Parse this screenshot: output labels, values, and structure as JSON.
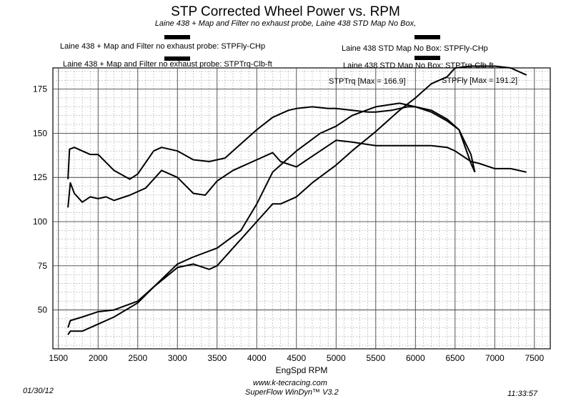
{
  "title": "STP Corrected Wheel Power vs. RPM",
  "subtitle": "Laine 438 + Map and Filter no exhaust probe, Laine 438 STD Map No Box,",
  "legend": [
    {
      "label": "Laine 438 + Map and Filter no exhaust probe: STPFly-CHp",
      "color": "#000000"
    },
    {
      "label": "Laine 438 + Map and Filter no exhaust probe: STPTrq-Clb-ft",
      "color": "#000000"
    },
    {
      "label": "Laine 438 STD Map No Box: STPFly-CHp",
      "color": "#000000"
    },
    {
      "label": "Laine 438 STD Map No Box: STPTrq-Clb-ft",
      "color": "#000000"
    }
  ],
  "annotations": {
    "power_max": "STPFly [Max = 191.2]",
    "torque_max": "STPTrq [Max = 166.9]"
  },
  "footer": {
    "date": "01/30/12",
    "website": "www.k-tecracing.com",
    "software": "SuperFlow WinDyn™ V3.2",
    "time": "11:33:57"
  },
  "chart_data": {
    "type": "line",
    "title": "STP Corrected Wheel Power vs. RPM",
    "xlabel": "EngSpd RPM",
    "ylabel": "",
    "xlim": [
      1430,
      7700
    ],
    "ylim": [
      28,
      187
    ],
    "xticks": [
      1500,
      2000,
      2500,
      3000,
      3500,
      4000,
      4500,
      5000,
      5500,
      6000,
      6500,
      7000,
      7500
    ],
    "yticks": [
      50,
      75,
      100,
      125,
      150,
      175
    ],
    "grid": true,
    "series": [
      {
        "name": "Laine 438 + Map and Filter no exhaust probe: STPFly-CHp",
        "x": [
          1620,
          1650,
          1800,
          2000,
          2200,
          2500,
          2700,
          3000,
          3200,
          3500,
          3800,
          4000,
          4200,
          4500,
          4800,
          5000,
          5200,
          5500,
          5800,
          6000,
          6200,
          6400,
          6550,
          6700,
          6750
        ],
        "y": [
          40,
          44,
          46,
          49,
          50,
          55,
          63,
          76,
          80,
          85,
          95,
          110,
          128,
          140,
          150,
          154,
          160,
          165,
          167,
          165,
          163,
          158,
          152,
          133,
          128
        ]
      },
      {
        "name": "Laine 438 + Map and Filter no exhaust probe: STPTrq-Clb-ft",
        "x": [
          1620,
          1640,
          1700,
          1800,
          1900,
          2000,
          2200,
          2400,
          2500,
          2700,
          2800,
          3000,
          3200,
          3400,
          3600,
          3800,
          4000,
          4200,
          4400,
          4500,
          4700,
          4900,
          5000,
          5200,
          5400,
          5500,
          5700,
          5900,
          6000,
          6200,
          6400,
          6550,
          6700,
          6750
        ],
        "y": [
          124,
          141,
          142,
          140,
          138,
          138,
          129,
          124,
          127,
          140,
          142,
          140,
          135,
          134,
          136,
          144,
          152,
          159,
          163,
          164,
          165,
          164,
          164,
          163,
          162,
          162,
          163,
          165,
          165,
          162,
          157,
          152,
          138,
          128
        ]
      },
      {
        "name": "Laine 438 STD Map No Box: STPFly-CHp",
        "x": [
          1620,
          1650,
          1800,
          2000,
          2200,
          2500,
          2700,
          3000,
          3200,
          3400,
          3500,
          3700,
          4000,
          4200,
          4300,
          4500,
          4700,
          5000,
          5200,
          5500,
          5800,
          6000,
          6200,
          6400,
          6500,
          6700,
          7000,
          7200,
          7400
        ],
        "y": [
          36,
          38,
          38,
          42,
          46,
          54,
          63,
          74,
          76,
          73,
          75,
          85,
          100,
          110,
          110,
          114,
          122,
          132,
          140,
          151,
          163,
          170,
          178,
          182,
          187,
          188,
          188,
          187,
          183
        ]
      },
      {
        "name": "Laine 438 STD Map No Box: STPTrq-Clb-ft",
        "x": [
          1620,
          1650,
          1700,
          1800,
          1900,
          2000,
          2100,
          2200,
          2400,
          2600,
          2800,
          3000,
          3200,
          3350,
          3500,
          3700,
          4000,
          4200,
          4300,
          4500,
          4700,
          5000,
          5200,
          5500,
          6000,
          6200,
          6400,
          6500,
          6700,
          6800,
          7000,
          7200,
          7400
        ],
        "y": [
          108,
          122,
          116,
          111,
          114,
          113,
          114,
          112,
          115,
          119,
          129,
          125,
          116,
          115,
          123,
          129,
          135,
          139,
          134,
          131,
          137,
          146,
          145,
          143,
          143,
          143,
          142,
          140,
          134,
          133,
          130,
          130,
          128
        ]
      }
    ]
  }
}
